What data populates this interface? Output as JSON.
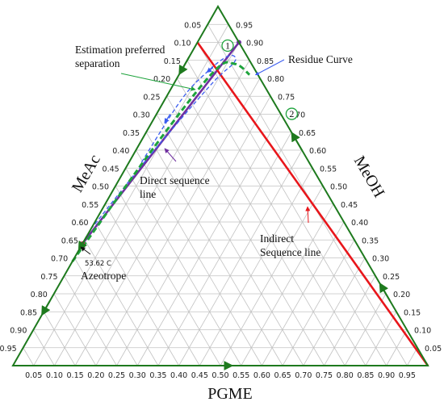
{
  "chart_data": {
    "type": "ternary",
    "axes": {
      "left": {
        "label": "MeAc"
      },
      "right": {
        "label": "MeOH"
      },
      "bottom": {
        "label": "PGME"
      }
    },
    "ticks": [
      "0.05",
      "0.10",
      "0.15",
      "0.20",
      "0.25",
      "0.30",
      "0.35",
      "0.40",
      "0.45",
      "0.50",
      "0.55",
      "0.60",
      "0.65",
      "0.70",
      "0.75",
      "0.80",
      "0.85",
      "0.90",
      "0.95"
    ],
    "grid": true,
    "points": {
      "azeotrope": {
        "MeAc": 0.66,
        "MeOH": 0.34,
        "PGME": 0.0,
        "label": "Azeotrope",
        "temperature_label": "53.62 C"
      },
      "point_1": {
        "MeAc": 0.1,
        "MeOH": 0.9,
        "PGME": 0.0,
        "label": "1"
      },
      "point_2": {
        "MeAc": 0.29,
        "MeOH": 0.71,
        "PGME": 0.0,
        "label": "2"
      }
    },
    "series": [
      {
        "name": "Direct sequence line",
        "color": "#7030a0",
        "x": [
          0.0,
          0.1
        ],
        "y": [
          0.34,
          0.9
        ]
      },
      {
        "name": "Indirect Sequence line",
        "color": "#e8161b",
        "x": [
          0.0,
          1.0
        ],
        "y": [
          0.9,
          0.0
        ]
      },
      {
        "name": "Residue Curve",
        "color": "#3a5cf0",
        "x": [
          0.0,
          0.04,
          0.09,
          0.115,
          0.11,
          0.09,
          0.065,
          0.04,
          0.03
        ],
        "y": [
          0.38,
          0.58,
          0.78,
          0.84,
          0.86,
          0.86,
          0.82,
          0.74,
          0.56
        ]
      },
      {
        "name": "Estimation preferred separation",
        "color": "#1ea33c",
        "x": [
          0.0,
          0.04,
          0.08,
          0.12,
          0.17
        ],
        "y": [
          0.29,
          0.61,
          0.82,
          0.84,
          0.81
        ]
      }
    ],
    "annotations": [
      {
        "text": "Estimation preferred",
        "target": "Estimation preferred separation"
      },
      {
        "text": "separation",
        "target": "Estimation preferred separation"
      },
      {
        "text": "Residue Curve",
        "target": "Residue Curve"
      },
      {
        "text": "Direct sequence",
        "target": "Direct sequence line"
      },
      {
        "text": "line",
        "target": "Direct sequence line"
      },
      {
        "text": "Indirect",
        "target": "Indirect Sequence line"
      },
      {
        "text": "Sequence line",
        "target": "Indirect Sequence line"
      },
      {
        "text": "Azeotrope",
        "target": "azeotrope"
      },
      {
        "text": "53.62 C",
        "target": "azeotrope"
      }
    ],
    "colors": {
      "frame": "#1e7a1e",
      "direct": "#7030a0",
      "indirect": "#e8161b",
      "residue": "#3a5cf0",
      "estimation": "#1ea33c",
      "grid": "#c2c2c2"
    }
  }
}
